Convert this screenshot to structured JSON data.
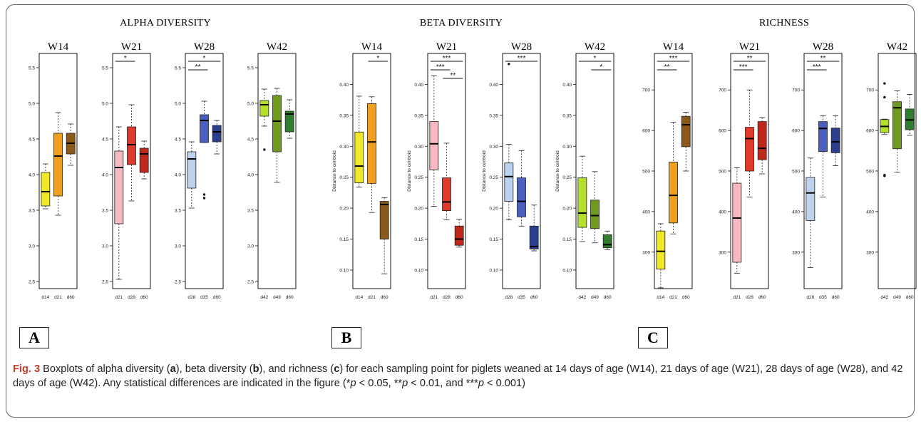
{
  "figure": {
    "group_titles": [
      "ALPHA DIVERSITY",
      "BETA DIVERSITY",
      "RICHNESS"
    ],
    "panel_labels": [
      "A",
      "B",
      "C"
    ]
  },
  "caption": {
    "label": "Fig. 3",
    "text_1": " Boxplots of alpha diversity (",
    "a": "a",
    "text_2": "), beta diversity (",
    "b": "b",
    "text_3": "), and richness (",
    "c": "c",
    "text_4": ") for each sampling point for piglets weaned at 14 days of age (W14), 21 days of age (W21), 28 days of age (W28), and 42 days of age (W42). Any statistical differences are indicated in the figure (*",
    "p1": "p",
    "text_5": " < 0.05, **",
    "p2": "p",
    "text_6": " < 0.01, and ***",
    "p3": "p",
    "text_7": " < 0.001)"
  },
  "chart_data": [
    {
      "type": "boxplot",
      "group": "ALPHA DIVERSITY",
      "title": "W14",
      "ylim": [
        2.4,
        5.7
      ],
      "yticks": [
        "2.5",
        "3.0",
        "3.5",
        "4.0",
        "4.5",
        "5.0",
        "5.5"
      ],
      "ylabel": "",
      "categories": [
        "d14",
        "d21",
        "d60"
      ],
      "colors": [
        "#f0e62a",
        "#f0a020",
        "#8b5a1a"
      ],
      "boxes": [
        {
          "min": 3.52,
          "q1": 3.56,
          "median": 3.76,
          "q3": 4.03,
          "max": 4.15,
          "outliers": []
        },
        {
          "min": 3.43,
          "q1": 3.7,
          "median": 4.26,
          "q3": 4.58,
          "max": 4.87,
          "outliers": []
        },
        {
          "min": 4.13,
          "q1": 4.29,
          "median": 4.44,
          "q3": 4.58,
          "max": 4.71,
          "outliers": []
        }
      ],
      "sig": []
    },
    {
      "type": "boxplot",
      "group": "ALPHA DIVERSITY",
      "title": "W21",
      "ylim": [
        2.4,
        5.7
      ],
      "yticks": [
        "2.5",
        "3.0",
        "3.5",
        "4.0",
        "4.5",
        "5.0",
        "5.5"
      ],
      "ylabel": "",
      "categories": [
        "d21",
        "d28",
        "d60"
      ],
      "colors": [
        "#f7b8c2",
        "#e03a2a",
        "#c0281c"
      ],
      "boxes": [
        {
          "min": 2.53,
          "q1": 3.31,
          "median": 4.1,
          "q3": 4.33,
          "max": 4.67,
          "outliers": []
        },
        {
          "min": 3.63,
          "q1": 4.14,
          "median": 4.42,
          "q3": 4.67,
          "max": 4.98,
          "outliers": []
        },
        {
          "min": 3.94,
          "q1": 4.03,
          "median": 4.29,
          "q3": 4.37,
          "max": 4.47,
          "outliers": []
        }
      ],
      "sig": [
        {
          "from": 0,
          "to": 1,
          "label": "*",
          "level": 0
        }
      ]
    },
    {
      "type": "boxplot",
      "group": "ALPHA DIVERSITY",
      "title": "W28",
      "ylim": [
        2.4,
        5.7
      ],
      "yticks": [
        "2.5",
        "3.0",
        "3.5",
        "4.0",
        "4.5",
        "5.0",
        "5.5"
      ],
      "ylabel": "",
      "categories": [
        "d28",
        "d35",
        "d60"
      ],
      "colors": [
        "#bcd2ee",
        "#4a5fbf",
        "#2b3f8e"
      ],
      "boxes": [
        {
          "min": 3.53,
          "q1": 3.81,
          "median": 4.22,
          "q3": 4.32,
          "max": 4.46,
          "outliers": []
        },
        {
          "min": 4.45,
          "q1": 4.45,
          "median": 4.76,
          "q3": 4.84,
          "max": 5.03,
          "outliers": [
            3.72,
            3.67
          ]
        },
        {
          "min": 4.29,
          "q1": 4.46,
          "median": 4.6,
          "q3": 4.69,
          "max": 4.76,
          "outliers": []
        }
      ],
      "sig": [
        {
          "from": 0,
          "to": 2,
          "label": "*",
          "level": 1
        },
        {
          "from": 0,
          "to": 1,
          "label": "**",
          "level": 0
        }
      ]
    },
    {
      "type": "boxplot",
      "group": "ALPHA DIVERSITY",
      "title": "W42",
      "ylim": [
        2.4,
        5.7
      ],
      "yticks": [
        "2.5",
        "3.0",
        "3.5",
        "4.0",
        "4.5",
        "5.0",
        "5.5"
      ],
      "ylabel": "",
      "categories": [
        "d42",
        "d49",
        "d60"
      ],
      "colors": [
        "#b5e02a",
        "#6e9a1e",
        "#2f7d2f"
      ],
      "boxes": [
        {
          "min": 4.68,
          "q1": 4.82,
          "median": 4.98,
          "q3": 5.04,
          "max": 5.2,
          "outliers": [
            4.35
          ]
        },
        {
          "min": 3.89,
          "q1": 4.32,
          "median": 4.75,
          "q3": 5.11,
          "max": 5.21,
          "outliers": []
        },
        {
          "min": 4.51,
          "q1": 4.6,
          "median": 4.85,
          "q3": 4.89,
          "max": 5.05,
          "outliers": []
        }
      ],
      "sig": []
    },
    {
      "type": "boxplot",
      "group": "BETA DIVERSITY",
      "title": "W14",
      "ylim": [
        0.07,
        0.45
      ],
      "yticks": [
        "0.10",
        "0.15",
        "0.20",
        "0.25",
        "0.30",
        "0.35",
        "0.40"
      ],
      "ylabel": "Distance to centroid",
      "categories": [
        "d14",
        "d21",
        "d60"
      ],
      "colors": [
        "#f0e62a",
        "#f0a020",
        "#8b5a1a"
      ],
      "boxes": [
        {
          "min": 0.234,
          "q1": 0.241,
          "median": 0.268,
          "q3": 0.323,
          "max": 0.381,
          "outliers": []
        },
        {
          "min": 0.193,
          "q1": 0.24,
          "median": 0.307,
          "q3": 0.369,
          "max": 0.38,
          "outliers": []
        },
        {
          "min": 0.094,
          "q1": 0.15,
          "median": 0.206,
          "q3": 0.211,
          "max": 0.217,
          "outliers": []
        }
      ],
      "sig": [
        {
          "from": 1,
          "to": 2,
          "label": "*",
          "level": 0
        }
      ]
    },
    {
      "type": "boxplot",
      "group": "BETA DIVERSITY",
      "title": "W21",
      "ylim": [
        0.07,
        0.45
      ],
      "yticks": [
        "0.10",
        "0.15",
        "0.20",
        "0.25",
        "0.30",
        "0.35",
        "0.40"
      ],
      "ylabel": "Distance to centroid",
      "categories": [
        "d21",
        "d28",
        "d60"
      ],
      "colors": [
        "#f7b8c2",
        "#e03a2a",
        "#c0281c"
      ],
      "boxes": [
        {
          "min": 0.203,
          "q1": 0.262,
          "median": 0.304,
          "q3": 0.34,
          "max": 0.414,
          "outliers": []
        },
        {
          "min": 0.181,
          "q1": 0.196,
          "median": 0.21,
          "q3": 0.249,
          "max": 0.305,
          "outliers": []
        },
        {
          "min": 0.137,
          "q1": 0.14,
          "median": 0.15,
          "q3": 0.171,
          "max": 0.182,
          "outliers": []
        }
      ],
      "sig": [
        {
          "from": 0,
          "to": 2,
          "label": "***",
          "level": 2
        },
        {
          "from": 0,
          "to": 1,
          "label": "***",
          "level": 1
        },
        {
          "from": 1,
          "to": 2,
          "label": "**",
          "level": 0
        }
      ]
    },
    {
      "type": "boxplot",
      "group": "BETA DIVERSITY",
      "title": "W28",
      "ylim": [
        0.07,
        0.45
      ],
      "yticks": [
        "0.10",
        "0.15",
        "0.20",
        "0.25",
        "0.30",
        "0.35",
        "0.40"
      ],
      "ylabel": "Distance to centroid",
      "categories": [
        "d28",
        "d35",
        "d60"
      ],
      "colors": [
        "#bcd2ee",
        "#4a5fbf",
        "#2b3f8e"
      ],
      "boxes": [
        {
          "min": 0.181,
          "q1": 0.211,
          "median": 0.251,
          "q3": 0.273,
          "max": 0.303,
          "outliers": [
            0.433
          ]
        },
        {
          "min": 0.171,
          "q1": 0.186,
          "median": 0.211,
          "q3": 0.249,
          "max": 0.293,
          "outliers": []
        },
        {
          "min": 0.131,
          "q1": 0.134,
          "median": 0.138,
          "q3": 0.171,
          "max": 0.205,
          "outliers": []
        }
      ],
      "sig": [
        {
          "from": 0,
          "to": 2,
          "label": "***",
          "level": 0
        }
      ]
    },
    {
      "type": "boxplot",
      "group": "BETA DIVERSITY",
      "title": "W42",
      "ylim": [
        0.07,
        0.45
      ],
      "yticks": [
        "0.10",
        "0.15",
        "0.20",
        "0.25",
        "0.30",
        "0.35",
        "0.40"
      ],
      "ylabel": "Distance to centroid",
      "categories": [
        "d42",
        "d49",
        "d60"
      ],
      "colors": [
        "#b5e02a",
        "#6e9a1e",
        "#2f7d2f"
      ],
      "boxes": [
        {
          "min": 0.146,
          "q1": 0.169,
          "median": 0.192,
          "q3": 0.249,
          "max": 0.284,
          "outliers": []
        },
        {
          "min": 0.144,
          "q1": 0.167,
          "median": 0.188,
          "q3": 0.213,
          "max": 0.259,
          "outliers": []
        },
        {
          "min": 0.133,
          "q1": 0.136,
          "median": 0.141,
          "q3": 0.157,
          "max": 0.163,
          "outliers": []
        }
      ],
      "sig": [
        {
          "from": 0,
          "to": 2,
          "label": "*",
          "level": 1
        },
        {
          "from": 1,
          "to": 2,
          "label": "*",
          "level": 0
        }
      ]
    },
    {
      "type": "boxplot",
      "group": "RICHNESS",
      "title": "W14",
      "ylim": [
        210,
        790
      ],
      "yticks": [
        "300",
        "400",
        "500",
        "600",
        "700"
      ],
      "ylabel": "",
      "categories": [
        "d14",
        "d21",
        "d60"
      ],
      "colors": [
        "#f0e62a",
        "#f0a020",
        "#8b5a1a"
      ],
      "boxes": [
        {
          "min": 212,
          "q1": 258,
          "median": 302,
          "q3": 352,
          "max": 370,
          "outliers": []
        },
        {
          "min": 345,
          "q1": 372,
          "median": 440,
          "q3": 522,
          "max": 620,
          "outliers": []
        },
        {
          "min": 500,
          "q1": 560,
          "median": 614,
          "q3": 635,
          "max": 645,
          "outliers": []
        }
      ],
      "sig": [
        {
          "from": 0,
          "to": 2,
          "label": "***",
          "level": 1
        },
        {
          "from": 0,
          "to": 1,
          "label": "**",
          "level": 0
        }
      ]
    },
    {
      "type": "boxplot",
      "group": "RICHNESS",
      "title": "W21",
      "ylim": [
        210,
        790
      ],
      "yticks": [
        "300",
        "400",
        "500",
        "600",
        "700"
      ],
      "ylabel": "",
      "categories": [
        "d21",
        "d28",
        "d60"
      ],
      "colors": [
        "#f7b8c2",
        "#e03a2a",
        "#c0281c"
      ],
      "boxes": [
        {
          "min": 248,
          "q1": 275,
          "median": 384,
          "q3": 470,
          "max": 508,
          "outliers": []
        },
        {
          "min": 436,
          "q1": 500,
          "median": 580,
          "q3": 608,
          "max": 700,
          "outliers": []
        },
        {
          "min": 493,
          "q1": 528,
          "median": 556,
          "q3": 622,
          "max": 632,
          "outliers": []
        }
      ],
      "sig": [
        {
          "from": 0,
          "to": 2,
          "label": "**",
          "level": 1
        },
        {
          "from": 0,
          "to": 1,
          "label": "***",
          "level": 0
        }
      ]
    },
    {
      "type": "boxplot",
      "group": "RICHNESS",
      "title": "W28",
      "ylim": [
        210,
        790
      ],
      "yticks": [
        "300",
        "400",
        "500",
        "600",
        "700"
      ],
      "ylabel": "",
      "categories": [
        "d28",
        "d35",
        "d60"
      ],
      "colors": [
        "#bcd2ee",
        "#4a5fbf",
        "#2b3f8e"
      ],
      "boxes": [
        {
          "min": 262,
          "q1": 378,
          "median": 446,
          "q3": 484,
          "max": 532,
          "outliers": []
        },
        {
          "min": 436,
          "q1": 548,
          "median": 605,
          "q3": 622,
          "max": 636,
          "outliers": []
        },
        {
          "min": 513,
          "q1": 545,
          "median": 572,
          "q3": 606,
          "max": 636,
          "outliers": []
        }
      ],
      "sig": [
        {
          "from": 0,
          "to": 2,
          "label": "**",
          "level": 1
        },
        {
          "from": 0,
          "to": 1,
          "label": "***",
          "level": 0
        }
      ]
    },
    {
      "type": "boxplot",
      "group": "RICHNESS",
      "title": "W42",
      "ylim": [
        210,
        790
      ],
      "yticks": [
        "300",
        "400",
        "500",
        "600",
        "700"
      ],
      "ylabel": "",
      "categories": [
        "d42",
        "d49",
        "d60"
      ],
      "colors": [
        "#b5e02a",
        "#6e9a1e",
        "#2f7d2f"
      ],
      "boxes": [
        {
          "min": 590,
          "q1": 595,
          "median": 610,
          "q3": 627,
          "max": 628,
          "outliers": [
            716,
            682,
            490,
            488
          ]
        },
        {
          "min": 497,
          "q1": 555,
          "median": 656,
          "q3": 671,
          "max": 698,
          "outliers": []
        },
        {
          "min": 588,
          "q1": 602,
          "median": 626,
          "q3": 653,
          "max": 689,
          "outliers": []
        }
      ],
      "sig": []
    }
  ]
}
